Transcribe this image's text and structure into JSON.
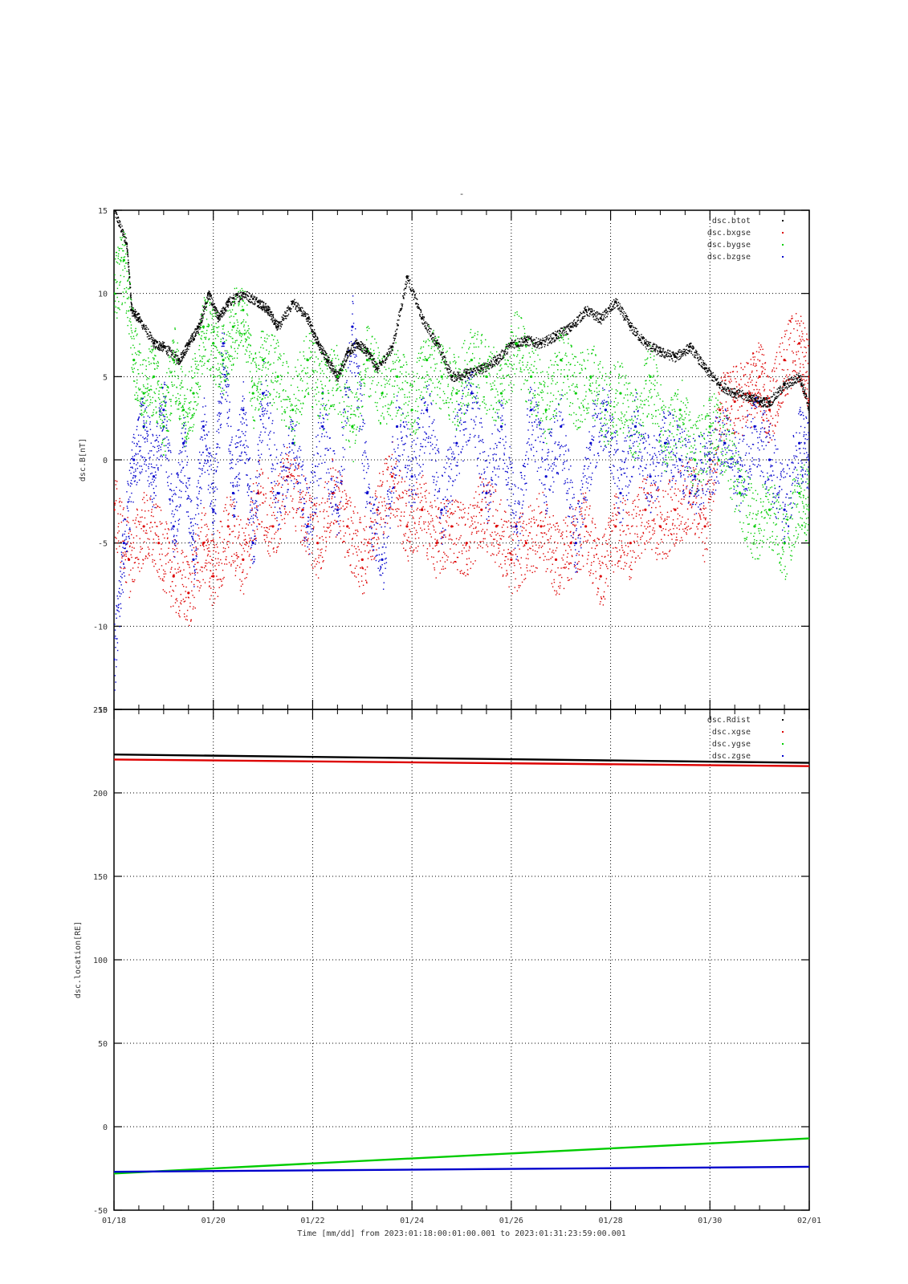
{
  "title": "-",
  "colors": {
    "black": "#000000",
    "red": "#dd0000",
    "green": "#00cc00",
    "blue": "#0000cc",
    "grid": "#000000"
  },
  "x_axis": {
    "label": "Time [mm/dd]  from 2023:01:18:00:01:00.001  to  2023:01:31:23:59:00.001",
    "ticks": [
      "01/18",
      "01/20",
      "01/22",
      "01/24",
      "01/26",
      "01/28",
      "01/30",
      "02/01"
    ],
    "range": [
      0,
      14
    ],
    "start_label": "2023-01-18",
    "tick_step_days": 2
  },
  "chart_data": [
    {
      "type": "scatter",
      "ylabel": "dsc.B[nT]",
      "ylim": [
        -15,
        15
      ],
      "yticks": [
        -15,
        -10,
        -5,
        0,
        5,
        10,
        15
      ],
      "grid": true,
      "legend_position": "top-right",
      "series": [
        {
          "name": "dsc.btot",
          "color": "black",
          "x": [
            0.0,
            0.25,
            0.35,
            0.5,
            0.8,
            1.0,
            1.3,
            1.5,
            1.7,
            1.9,
            2.1,
            2.3,
            2.6,
            2.9,
            3.1,
            3.3,
            3.6,
            3.9,
            4.1,
            4.3,
            4.5,
            4.7,
            4.9,
            5.1,
            5.3,
            5.6,
            5.9,
            6.2,
            6.5,
            6.8,
            7.1,
            7.4,
            7.7,
            8.0,
            8.3,
            8.6,
            8.9,
            9.2,
            9.5,
            9.8,
            10.1,
            10.4,
            10.7,
            11.0,
            11.3,
            11.6,
            11.9,
            12.2,
            12.5,
            12.8,
            13.0,
            13.2,
            13.5,
            13.8,
            14.0
          ],
          "y": [
            15.0,
            13.0,
            9.0,
            8.5,
            7.0,
            6.8,
            6.0,
            7.0,
            8.0,
            10.0,
            8.5,
            9.5,
            10.0,
            9.5,
            9.0,
            8.0,
            9.5,
            8.5,
            7.0,
            6.0,
            5.0,
            6.5,
            7.0,
            6.5,
            5.5,
            6.8,
            11.0,
            8.5,
            7.0,
            5.0,
            5.2,
            5.5,
            6.0,
            7.0,
            7.2,
            7.0,
            7.5,
            8.0,
            9.0,
            8.5,
            9.5,
            8.0,
            7.0,
            6.5,
            6.2,
            6.8,
            5.5,
            4.5,
            4.0,
            3.8,
            3.5,
            3.5,
            4.5,
            5.0,
            3.0
          ]
        },
        {
          "name": "dsc.bxgse",
          "color": "red",
          "x": [
            0.0,
            0.3,
            0.6,
            0.9,
            1.2,
            1.5,
            1.8,
            2.0,
            2.3,
            2.6,
            2.9,
            3.2,
            3.5,
            3.8,
            4.1,
            4.4,
            4.7,
            5.0,
            5.3,
            5.6,
            5.9,
            6.2,
            6.5,
            6.8,
            7.1,
            7.4,
            7.7,
            8.0,
            8.3,
            8.6,
            8.9,
            9.2,
            9.5,
            9.8,
            10.1,
            10.4,
            10.7,
            11.0,
            11.3,
            11.6,
            11.9,
            12.2,
            12.5,
            12.8,
            13.0,
            13.2,
            13.5,
            13.8,
            14.0
          ],
          "y": [
            -3,
            -6,
            -4,
            -5,
            -7,
            -8,
            -5,
            -7,
            -4,
            -6,
            -2,
            -4,
            -1,
            -3,
            -5,
            -2,
            -4,
            -6,
            -3,
            -1,
            -4,
            -3,
            -5,
            -4,
            -5,
            -3,
            -4,
            -6,
            -5,
            -4,
            -6,
            -5,
            -4,
            -7,
            -4,
            -5,
            -3,
            -4,
            -3,
            -2,
            -4,
            3,
            3.5,
            4,
            5,
            3,
            6,
            7,
            5
          ]
        },
        {
          "name": "dsc.bygse",
          "color": "green",
          "x": [
            0.0,
            0.2,
            0.4,
            0.6,
            0.8,
            1.0,
            1.2,
            1.4,
            1.6,
            1.8,
            2.0,
            2.2,
            2.4,
            2.6,
            2.8,
            3.0,
            3.3,
            3.6,
            3.9,
            4.2,
            4.5,
            4.8,
            5.1,
            5.4,
            5.7,
            6.0,
            6.3,
            6.6,
            6.9,
            7.2,
            7.5,
            7.8,
            8.1,
            8.4,
            8.7,
            9.0,
            9.3,
            9.6,
            9.9,
            10.2,
            10.5,
            10.8,
            11.1,
            11.4,
            11.7,
            12.0,
            12.3,
            12.6,
            12.9,
            13.2,
            13.5,
            13.8,
            14.0
          ],
          "y": [
            10,
            12,
            6,
            4,
            5,
            2,
            6,
            3,
            4,
            8,
            7,
            6,
            8,
            9,
            4,
            6,
            5,
            3,
            6,
            4,
            5,
            2,
            6,
            4,
            5,
            3,
            6,
            5,
            4,
            6,
            5,
            4,
            7,
            5,
            3,
            6,
            4,
            5,
            3,
            4,
            2,
            5,
            1,
            3,
            0,
            2,
            1,
            -2,
            -4,
            -3,
            -5,
            -2,
            -3
          ]
        },
        {
          "name": "dsc.bzgse",
          "color": "blue",
          "x": [
            0.0,
            0.2,
            0.4,
            0.6,
            0.8,
            1.0,
            1.2,
            1.4,
            1.6,
            1.8,
            2.0,
            2.2,
            2.4,
            2.6,
            2.8,
            3.0,
            3.3,
            3.6,
            3.9,
            4.2,
            4.5,
            4.8,
            5.1,
            5.4,
            5.7,
            6.0,
            6.3,
            6.6,
            6.9,
            7.2,
            7.5,
            7.8,
            8.1,
            8.4,
            8.7,
            9.0,
            9.3,
            9.6,
            9.9,
            10.2,
            10.5,
            10.8,
            11.1,
            11.4,
            11.7,
            12.0,
            12.3,
            12.6,
            12.9,
            13.2,
            13.5,
            13.8,
            14.0
          ],
          "y": [
            -12,
            -5,
            0,
            2,
            -1,
            3,
            -4,
            1,
            -6,
            2,
            -3,
            7,
            -2,
            3,
            -5,
            4,
            -2,
            1,
            -4,
            2,
            -3,
            8,
            -2,
            -6,
            2,
            -1,
            3,
            -3,
            1,
            4,
            -2,
            2,
            -4,
            3,
            -1,
            2,
            -5,
            1,
            3,
            -2,
            2,
            -1,
            1,
            0,
            -1,
            0,
            1,
            -1,
            2,
            0,
            -3,
            1,
            0
          ]
        }
      ]
    },
    {
      "type": "line",
      "ylabel": "dsc.location[RE]",
      "ylim": [
        -50,
        250
      ],
      "yticks": [
        -50,
        0,
        50,
        100,
        150,
        200,
        250
      ],
      "grid": true,
      "legend_position": "top-right",
      "series": [
        {
          "name": "dsc.Rdist",
          "color": "black",
          "x": [
            0,
            14
          ],
          "y": [
            223,
            218
          ]
        },
        {
          "name": "dsc.xgse",
          "color": "red",
          "x": [
            0,
            14
          ],
          "y": [
            220,
            216
          ]
        },
        {
          "name": "dsc.ygse",
          "color": "green",
          "x": [
            0,
            14
          ],
          "y": [
            -28,
            -7
          ]
        },
        {
          "name": "dsc.zgse",
          "color": "blue",
          "x": [
            0,
            14
          ],
          "y": [
            -27,
            -24
          ]
        }
      ]
    }
  ]
}
